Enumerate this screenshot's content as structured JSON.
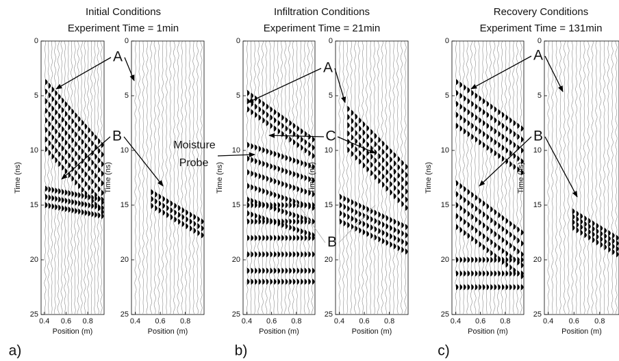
{
  "figure": {
    "panels": [
      {
        "title": "Initial Conditions",
        "subtitle": "Experiment Time = 1min",
        "label": "a)"
      },
      {
        "title": "Infiltration Conditions",
        "subtitle": "Experiment Time = 21min",
        "label": "b)"
      },
      {
        "title": "Recovery Conditions",
        "subtitle": "Experiment Time = 131min",
        "label": "c)"
      }
    ]
  },
  "annotations": [
    "A",
    "B",
    "A",
    "C",
    "Moisture",
    "Probe",
    "B",
    "A",
    "B"
  ],
  "chart_data": [
    {
      "type": "wiggle",
      "xlabel": "Position (m)",
      "ylabel": "Time (ns)",
      "xlim": [
        0.37,
        0.95
      ],
      "ylim": [
        0,
        25
      ],
      "y_inverted": true,
      "xticks": [
        0.4,
        0.6,
        0.8
      ],
      "yticks": [
        0,
        5,
        10,
        15,
        20,
        25
      ]
    },
    {
      "type": "wiggle",
      "xlabel": "Position (m)",
      "ylabel": "Time (ns)",
      "xlim": [
        0.37,
        0.95
      ],
      "ylim": [
        0,
        25
      ],
      "y_inverted": true,
      "xticks": [
        0.4,
        0.6,
        0.8
      ],
      "yticks": [
        0,
        5,
        10,
        15,
        20,
        25
      ]
    },
    {
      "type": "wiggle",
      "xlabel": "Position (m)",
      "ylabel": "Time (ns)",
      "xlim": [
        0.37,
        0.95
      ],
      "ylim": [
        0,
        25
      ],
      "y_inverted": true,
      "xticks": [
        0.4,
        0.6,
        0.8
      ],
      "yticks": [
        0,
        5,
        10,
        15,
        20,
        25
      ]
    },
    {
      "type": "wiggle",
      "xlabel": "Position (m)",
      "ylabel": "Time (ns)",
      "xlim": [
        0.37,
        0.95
      ],
      "ylim": [
        0,
        25
      ],
      "y_inverted": true,
      "xticks": [
        0.4,
        0.6,
        0.8
      ],
      "yticks": [
        0,
        5,
        10,
        15,
        20,
        25
      ]
    },
    {
      "type": "wiggle",
      "xlabel": "Position (m)",
      "ylabel": "Time (ns)",
      "xlim": [
        0.37,
        0.95
      ],
      "ylim": [
        0,
        25
      ],
      "y_inverted": true,
      "xticks": [
        0.4,
        0.6,
        0.8
      ],
      "yticks": [
        0,
        5,
        10,
        15,
        20,
        25
      ]
    },
    {
      "type": "wiggle",
      "xlabel": "Position (m)",
      "ylabel": "Time (ns)",
      "xlim": [
        0.37,
        0.95
      ],
      "ylim": [
        0,
        25
      ],
      "y_inverted": true,
      "xticks": [
        0.4,
        0.6,
        0.8
      ],
      "yticks": [
        0,
        5,
        10,
        15,
        20,
        25
      ]
    }
  ]
}
